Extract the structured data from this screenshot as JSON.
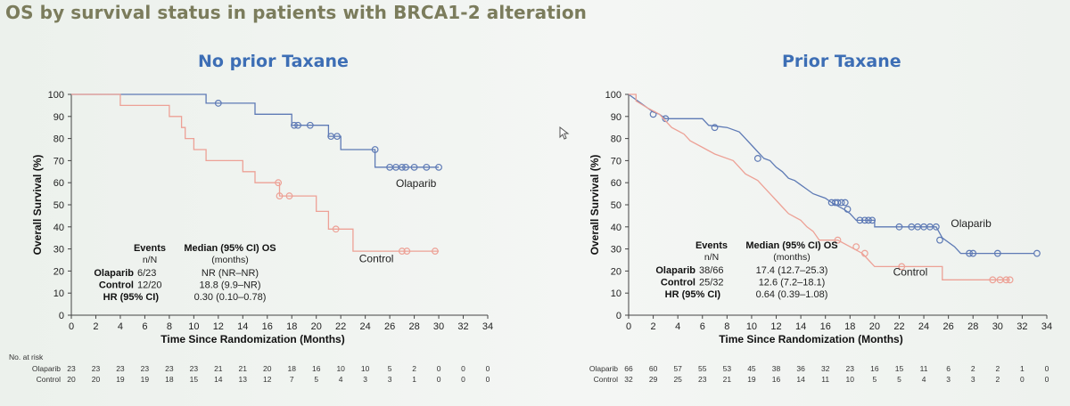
{
  "slide_title": "OS by survival status in patients with BRCA1-2 alteration",
  "colors": {
    "olaparib": "#5e7ab5",
    "control": "#eda196",
    "title": "#7b7c5c",
    "panel_title": "#3d6eb5"
  },
  "cursor_icon": "mouse-pointer-icon",
  "chart_data": [
    {
      "type": "line",
      "subtype": "kaplan-meier",
      "title": "No prior Taxane",
      "xlabel": "Time Since Randomization (Months)",
      "ylabel": "Overall Survival (%)",
      "xlim": [
        0,
        34
      ],
      "ylim": [
        0,
        100
      ],
      "xticks": [
        "0",
        "2",
        "4",
        "6",
        "8",
        "10",
        "12",
        "14",
        "16",
        "18",
        "20",
        "22",
        "24",
        "26",
        "28",
        "30",
        "32",
        "34"
      ],
      "yticks": [
        "0",
        "10",
        "20",
        "30",
        "40",
        "50",
        "60",
        "70",
        "80",
        "90",
        "100"
      ],
      "series": [
        {
          "name": "Olaparib",
          "label_pos": [
            26.5,
            58
          ],
          "steps": [
            [
              0,
              100
            ],
            [
              11,
              100
            ],
            [
              11,
              96
            ],
            [
              15,
              96
            ],
            [
              15,
              91
            ],
            [
              18,
              91
            ],
            [
              18,
              86
            ],
            [
              21,
              86
            ],
            [
              21,
              81
            ],
            [
              22,
              81
            ],
            [
              22,
              75
            ],
            [
              24.8,
              75
            ],
            [
              24.8,
              67
            ],
            [
              30,
              67
            ]
          ],
          "censored": [
            [
              12,
              96
            ],
            [
              18.2,
              86
            ],
            [
              18.5,
              86
            ],
            [
              19.5,
              86
            ],
            [
              21.2,
              81
            ],
            [
              21.7,
              81
            ],
            [
              24.8,
              75
            ],
            [
              26,
              67
            ],
            [
              26.5,
              67
            ],
            [
              27,
              67
            ],
            [
              27.3,
              67
            ],
            [
              28,
              67
            ],
            [
              29,
              67
            ],
            [
              30,
              67
            ]
          ]
        },
        {
          "name": "Control",
          "label_pos": [
            23.5,
            24
          ],
          "steps": [
            [
              0,
              100
            ],
            [
              4,
              100
            ],
            [
              4,
              95
            ],
            [
              8,
              95
            ],
            [
              8,
              90
            ],
            [
              9,
              90
            ],
            [
              9,
              85
            ],
            [
              9.3,
              85
            ],
            [
              9.3,
              80
            ],
            [
              10,
              80
            ],
            [
              10,
              75
            ],
            [
              11,
              75
            ],
            [
              11,
              70
            ],
            [
              14,
              70
            ],
            [
              14,
              65
            ],
            [
              15,
              65
            ],
            [
              15,
              60
            ],
            [
              17,
              60
            ],
            [
              17,
              54
            ],
            [
              20,
              54
            ],
            [
              20,
              47
            ],
            [
              21,
              47
            ],
            [
              21,
              39
            ],
            [
              23,
              39
            ],
            [
              23,
              29
            ],
            [
              30,
              29
            ]
          ],
          "censored": [
            [
              16.9,
              60
            ],
            [
              17,
              54
            ],
            [
              17.8,
              54
            ],
            [
              21.6,
              39
            ],
            [
              27,
              29
            ],
            [
              27.4,
              29
            ],
            [
              29.7,
              29
            ]
          ]
        }
      ],
      "table": {
        "headers": [
          "Events",
          "Median (95% CI) OS"
        ],
        "subheaders": [
          "n/N",
          "(months)"
        ],
        "rows": [
          {
            "label": "Olaparib",
            "events": "6/23",
            "median": "NR (NR–NR)"
          },
          {
            "label": "Control",
            "events": "12/20",
            "median": "18.8 (9.9–NR)"
          }
        ],
        "hr": {
          "label": "HR (95% CI)",
          "value": "0.30 (0.10–0.78)"
        }
      },
      "at_risk": {
        "label": "No. at risk",
        "rows": [
          {
            "name": "Olaparib",
            "values": [
              "23",
              "23",
              "23",
              "23",
              "23",
              "23",
              "21",
              "21",
              "20",
              "18",
              "16",
              "10",
              "10",
              "5",
              "2",
              "0",
              "0",
              "0"
            ]
          },
          {
            "name": "Control",
            "values": [
              "20",
              "20",
              "19",
              "19",
              "18",
              "15",
              "14",
              "13",
              "12",
              "7",
              "5",
              "4",
              "3",
              "3",
              "1",
              "0",
              "0",
              "0"
            ]
          }
        ]
      }
    },
    {
      "type": "line",
      "subtype": "kaplan-meier",
      "title": "Prior Taxane",
      "xlabel": "Time Since Randomization (Months)",
      "ylabel": "Overall Survival (%)",
      "xlim": [
        0,
        34
      ],
      "ylim": [
        0,
        100
      ],
      "xticks": [
        "0",
        "2",
        "4",
        "6",
        "8",
        "10",
        "12",
        "14",
        "16",
        "18",
        "20",
        "22",
        "24",
        "26",
        "28",
        "30",
        "32",
        "34"
      ],
      "yticks": [
        "0",
        "10",
        "20",
        "30",
        "40",
        "50",
        "60",
        "70",
        "80",
        "90",
        "100"
      ],
      "series": [
        {
          "name": "Olaparib",
          "label_pos": [
            26.2,
            40
          ],
          "steps": [
            [
              0,
              100
            ],
            [
              0.5,
              98
            ],
            [
              1,
              96
            ],
            [
              1.5,
              94
            ],
            [
              2,
              92
            ],
            [
              2.5,
              91
            ],
            [
              3,
              89
            ],
            [
              6,
              89
            ],
            [
              6.5,
              86
            ],
            [
              8,
              85
            ],
            [
              9,
              83
            ],
            [
              9.5,
              80
            ],
            [
              10,
              77
            ],
            [
              10.5,
              74
            ],
            [
              11,
              71
            ],
            [
              11.5,
              70
            ],
            [
              12,
              67
            ],
            [
              12.5,
              65
            ],
            [
              13,
              62
            ],
            [
              13.5,
              61
            ],
            [
              14,
              59
            ],
            [
              14.5,
              57
            ],
            [
              15,
              55
            ],
            [
              15.5,
              54
            ],
            [
              16,
              53
            ],
            [
              16.5,
              51
            ],
            [
              17.5,
              48
            ],
            [
              18,
              46
            ],
            [
              18.5,
              43
            ],
            [
              20,
              43
            ],
            [
              20,
              40
            ],
            [
              25,
              40
            ],
            [
              25.5,
              35
            ],
            [
              26.5,
              31
            ],
            [
              27,
              28
            ],
            [
              33,
              28
            ]
          ],
          "censored": [
            [
              2,
              91
            ],
            [
              3,
              89
            ],
            [
              7,
              85
            ],
            [
              10.5,
              71
            ],
            [
              16.5,
              51
            ],
            [
              16.8,
              51
            ],
            [
              17,
              51
            ],
            [
              17.3,
              51
            ],
            [
              17.6,
              51
            ],
            [
              17.8,
              48
            ],
            [
              18.8,
              43
            ],
            [
              19.2,
              43
            ],
            [
              19.5,
              43
            ],
            [
              19.8,
              43
            ],
            [
              22,
              40
            ],
            [
              23,
              40
            ],
            [
              23.5,
              40
            ],
            [
              24,
              40
            ],
            [
              24.5,
              40
            ],
            [
              25,
              40
            ],
            [
              25.3,
              34
            ],
            [
              27.7,
              28
            ],
            [
              28,
              28
            ],
            [
              30,
              28
            ],
            [
              33.2,
              28
            ]
          ]
        },
        {
          "name": "Control",
          "label_pos": [
            21.5,
            18
          ],
          "steps": [
            [
              0,
              100
            ],
            [
              0.6,
              100
            ],
            [
              0.6,
              97
            ],
            [
              1.5,
              94
            ],
            [
              2.5,
              91
            ],
            [
              3,
              88
            ],
            [
              3.5,
              85
            ],
            [
              4.5,
              82
            ],
            [
              5,
              79
            ],
            [
              6,
              76
            ],
            [
              7,
              73
            ],
            [
              8.5,
              70
            ],
            [
              9,
              67
            ],
            [
              9.5,
              64
            ],
            [
              10.5,
              61
            ],
            [
              11,
              58
            ],
            [
              11.5,
              55
            ],
            [
              12,
              52
            ],
            [
              12.5,
              49
            ],
            [
              13,
              46
            ],
            [
              14,
              43
            ],
            [
              14.5,
              40
            ],
            [
              15,
              38
            ],
            [
              15.5,
              34
            ],
            [
              17,
              34
            ],
            [
              18,
              31
            ],
            [
              19,
              28
            ],
            [
              19.5,
              25
            ],
            [
              20,
              22
            ],
            [
              25.5,
              22
            ],
            [
              25.5,
              16
            ],
            [
              31,
              16
            ]
          ],
          "censored": [
            [
              17,
              34
            ],
            [
              18.5,
              31
            ],
            [
              19.2,
              28
            ],
            [
              22.2,
              22
            ],
            [
              29.6,
              16
            ],
            [
              30.2,
              16
            ],
            [
              30.7,
              16
            ],
            [
              31,
              16
            ]
          ]
        }
      ],
      "table": {
        "headers": [
          "Events",
          "Median (95% CI) OS"
        ],
        "subheaders": [
          "n/N",
          "(months)"
        ],
        "rows": [
          {
            "label": "Olaparib",
            "events": "38/66",
            "median": "17.4 (12.7–25.3)"
          },
          {
            "label": "Control",
            "events": "25/32",
            "median": "12.6 (7.2–18.1)"
          }
        ],
        "hr": {
          "label": "HR (95% CI)",
          "value": "0.64 (0.39–1.08)"
        }
      },
      "at_risk": {
        "label": "",
        "rows": [
          {
            "name": "Olaparib",
            "values": [
              "66",
              "60",
              "57",
              "55",
              "53",
              "45",
              "38",
              "36",
              "32",
              "23",
              "16",
              "15",
              "11",
              "6",
              "2",
              "2",
              "1",
              "0"
            ]
          },
          {
            "name": "Control",
            "values": [
              "32",
              "29",
              "25",
              "23",
              "21",
              "19",
              "16",
              "14",
              "11",
              "10",
              "5",
              "5",
              "4",
              "3",
              "3",
              "2",
              "0",
              "0"
            ]
          }
        ]
      }
    }
  ]
}
